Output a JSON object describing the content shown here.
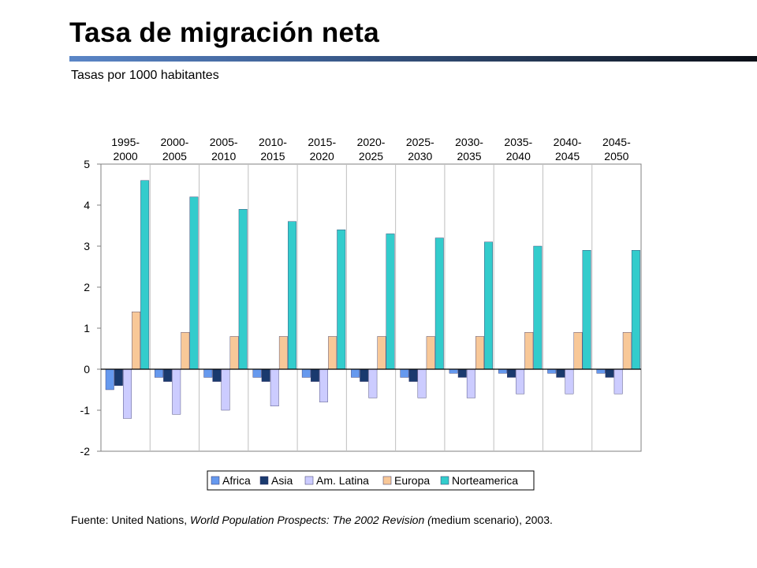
{
  "header": {
    "title": "Tasa de migración neta",
    "subtitle": "Tasas por 1000 habitantes"
  },
  "source": {
    "prefix": "Fuente: United Nations, ",
    "italic": "World Population Prospects: The 2002 Revision (",
    "suffix": "medium scenario), 2003."
  },
  "colors": {
    "Africa": "#6699ee",
    "Asia": "#1a3a6e",
    "Am. Latina": "#ccccff",
    "Europa": "#f8c898",
    "Norteamerica": "#33cccc",
    "title_bar": "#3d5f93"
  },
  "chart_data": {
    "type": "bar",
    "categories": [
      [
        "1995-",
        "2000"
      ],
      [
        "2000-",
        "2005"
      ],
      [
        "2005-",
        "2010"
      ],
      [
        "2010-",
        "2015"
      ],
      [
        "2015-",
        "2020"
      ],
      [
        "2020-",
        "2025"
      ],
      [
        "2025-",
        "2030"
      ],
      [
        "2030-",
        "2035"
      ],
      [
        "2035-",
        "2040"
      ],
      [
        "2040-",
        "2045"
      ],
      [
        "2045-",
        "2050"
      ]
    ],
    "series": [
      {
        "name": "Africa",
        "values": [
          -0.5,
          -0.2,
          -0.2,
          -0.2,
          -0.2,
          -0.2,
          -0.2,
          -0.1,
          -0.1,
          -0.1,
          -0.1
        ]
      },
      {
        "name": "Asia",
        "values": [
          -0.4,
          -0.3,
          -0.3,
          -0.3,
          -0.3,
          -0.3,
          -0.3,
          -0.2,
          -0.2,
          -0.2,
          -0.2
        ]
      },
      {
        "name": "Am. Latina",
        "values": [
          -1.2,
          -1.1,
          -1.0,
          -0.9,
          -0.8,
          -0.7,
          -0.7,
          -0.7,
          -0.6,
          -0.6,
          -0.6
        ]
      },
      {
        "name": "Europa",
        "values": [
          1.4,
          0.9,
          0.8,
          0.8,
          0.8,
          0.8,
          0.8,
          0.8,
          0.9,
          0.9,
          0.9
        ]
      },
      {
        "name": "Norteamerica",
        "values": [
          4.6,
          4.2,
          3.9,
          3.6,
          3.4,
          3.3,
          3.2,
          3.1,
          3.0,
          2.9,
          2.9
        ]
      }
    ],
    "ylim": [
      -2,
      5
    ],
    "yticks": [
      5,
      4,
      3,
      2,
      1,
      0,
      -1,
      -2
    ],
    "legend": "bottom",
    "grid": "vertical category lines",
    "xlabel": "",
    "ylabel": ""
  }
}
